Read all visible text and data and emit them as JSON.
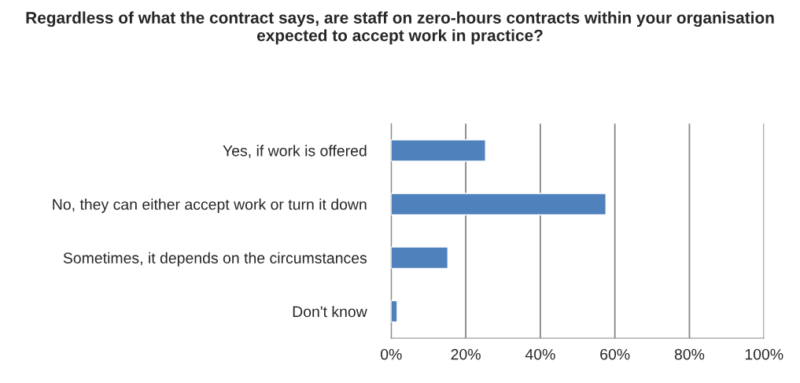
{
  "chart_data": {
    "type": "bar",
    "orientation": "horizontal",
    "title": "Regardless of what the contract says, are staff on zero-hours contracts within your organisation expected to accept work in practice?",
    "categories": [
      "Yes, if work is offered",
      "No, they can either accept work or turn it down",
      "Sometimes, it depends on the circumstances",
      "Don't know"
    ],
    "values": [
      25.3,
      57.6,
      15.2,
      1.6
    ],
    "color": "#4f81bd",
    "xlim": [
      0,
      100
    ],
    "xticks": [
      {
        "value": 0,
        "label": "0%"
      },
      {
        "value": 20,
        "label": "20%"
      },
      {
        "value": 40,
        "label": "40%"
      },
      {
        "value": 60,
        "label": "60%"
      },
      {
        "value": 80,
        "label": "80%"
      },
      {
        "value": 100,
        "label": "100%"
      }
    ],
    "grid": "x"
  }
}
